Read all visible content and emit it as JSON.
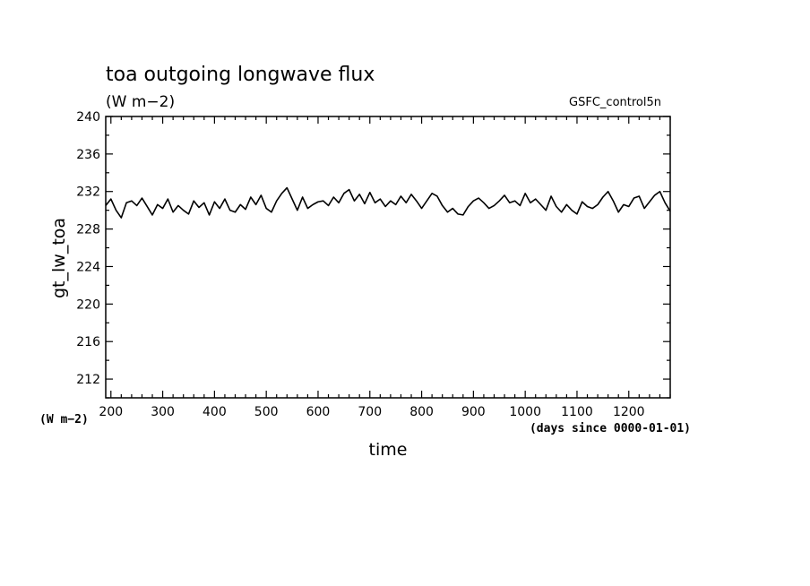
{
  "chart_data": {
    "type": "line",
    "title": "toa outgoing longwave flux",
    "subtitle": "(W m−2)",
    "run_label": "GSFC_control5n",
    "xlabel": "time",
    "xlabel_units": "(days since 0000-01-01)",
    "ylabel": "gt_lw_toa",
    "ylabel_units": "(W m−2)",
    "xlim": [
      190,
      1280
    ],
    "ylim": [
      210,
      240
    ],
    "x_ticks": [
      200,
      300,
      400,
      500,
      600,
      700,
      800,
      900,
      1000,
      1100,
      1200
    ],
    "y_ticks": [
      212,
      216,
      220,
      224,
      228,
      232,
      236,
      240
    ],
    "line_color": "#000000",
    "series": [
      {
        "x": [
          190,
          200,
          210,
          220,
          230,
          240,
          250,
          260,
          270,
          280,
          290,
          300,
          310,
          320,
          330,
          340,
          350,
          360,
          370,
          380,
          390,
          400,
          410,
          420,
          430,
          440,
          450,
          460,
          470,
          480,
          490,
          500,
          510,
          520,
          530,
          540,
          550,
          560,
          570,
          580,
          590,
          600,
          610,
          620,
          630,
          640,
          650,
          660,
          670,
          680,
          690,
          700,
          710,
          720,
          730,
          740,
          750,
          760,
          770,
          780,
          790,
          800,
          810,
          820,
          830,
          840,
          850,
          860,
          870,
          880,
          890,
          900,
          910,
          920,
          930,
          940,
          950,
          960,
          970,
          980,
          990,
          1000,
          1010,
          1020,
          1030,
          1040,
          1050,
          1060,
          1070,
          1080,
          1090,
          1100,
          1110,
          1120,
          1130,
          1140,
          1150,
          1160,
          1170,
          1180,
          1190,
          1200,
          1210,
          1220,
          1230,
          1240,
          1250,
          1260,
          1270,
          1280
        ],
        "y": [
          230.5,
          231.2,
          230.0,
          229.2,
          230.8,
          231.0,
          230.5,
          231.3,
          230.4,
          229.5,
          230.6,
          230.2,
          231.2,
          229.8,
          230.5,
          230.0,
          229.6,
          231.0,
          230.3,
          230.8,
          229.5,
          230.9,
          230.2,
          231.2,
          230.0,
          229.8,
          230.6,
          230.1,
          231.4,
          230.6,
          231.6,
          230.2,
          229.8,
          231.0,
          231.8,
          232.4,
          231.2,
          230.0,
          231.4,
          230.2,
          230.6,
          230.9,
          231.0,
          230.5,
          231.4,
          230.8,
          231.8,
          232.2,
          231.0,
          231.7,
          230.7,
          231.9,
          230.8,
          231.2,
          230.4,
          231.0,
          230.6,
          231.5,
          230.8,
          231.7,
          231.0,
          230.2,
          231.0,
          231.8,
          231.5,
          230.5,
          229.8,
          230.2,
          229.6,
          229.5,
          230.4,
          231.0,
          231.3,
          230.8,
          230.2,
          230.5,
          231.0,
          231.6,
          230.8,
          231.0,
          230.5,
          231.8,
          230.8,
          231.2,
          230.6,
          230.0,
          231.5,
          230.4,
          229.8,
          230.6,
          230.0,
          229.6,
          230.9,
          230.4,
          230.2,
          230.6,
          231.4,
          232.0,
          231.0,
          229.8,
          230.6,
          230.4,
          231.3,
          231.5,
          230.2,
          230.9,
          231.6,
          232.0,
          230.8,
          229.9
        ]
      }
    ]
  }
}
